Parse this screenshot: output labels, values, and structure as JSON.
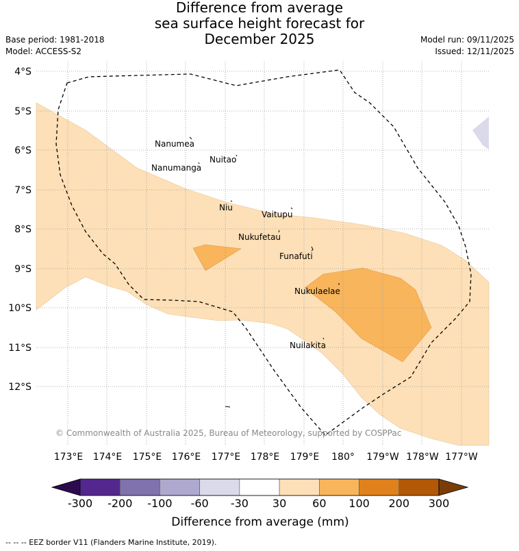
{
  "title_lines": [
    "Difference from average",
    "sea surface height forecast for",
    "December 2025"
  ],
  "meta_left": {
    "base_period": "Base period: 1981-2018",
    "model": "Model: ACCESS-S2"
  },
  "meta_right": {
    "model_run": "Model run: 09/11/2025",
    "issued": "Issued: 12/11/2025"
  },
  "lat_labels": [
    "4°S",
    "5°S",
    "6°S",
    "7°S",
    "8°S",
    "9°S",
    "10°S",
    "11°S",
    "12°S"
  ],
  "lon_labels": [
    "173°E",
    "174°E",
    "175°E",
    "176°E",
    "177°E",
    "178°E",
    "179°E",
    "180°",
    "179°W",
    "178°W",
    "177°W"
  ],
  "islands": [
    "Nanumea",
    "Nuitao",
    "Nanumanga",
    "Niu",
    "Vaitupu",
    "Nukufetau",
    "Funafuti",
    "Nukulaelae",
    "Nuilakita"
  ],
  "copyright": "© Commonwealth of Australia 2025, Bureau of Meteorology, supported by COSPPac",
  "colorbar": {
    "ticks": [
      "-300",
      "-200",
      "-100",
      "-60",
      "-30",
      "30",
      "60",
      "100",
      "200",
      "300"
    ],
    "label": "Difference from average (mm)",
    "colors": {
      "under": "#2d0a4e",
      "bins": [
        "#54278f",
        "#7f72ad",
        "#afa9d0",
        "#dadaeb",
        "#ffffff",
        "#fde0b7",
        "#f9b55c",
        "#e0811c",
        "#b35806"
      ],
      "over": "#7a3d08"
    }
  },
  "legend": "-- -- -- EEZ border V11 (Flanders Marine Institute, 2019)."
}
